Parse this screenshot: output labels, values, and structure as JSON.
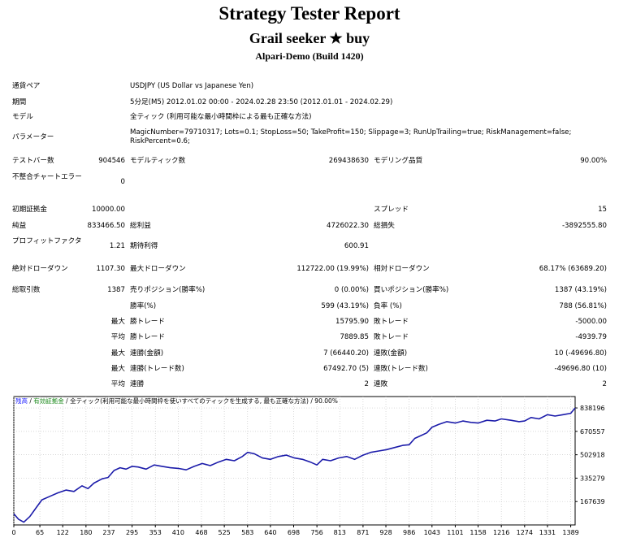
{
  "header": {
    "title": "Strategy Tester Report",
    "ea_name": "Grail seeker ★ buy",
    "server": "Alpari-Demo (Build 1420)"
  },
  "info": {
    "symbol_label": "通貨ペア",
    "symbol_value": "USDJPY (US Dollar vs Japanese Yen)",
    "period_label": "期間",
    "period_value": "5分足(M5) 2012.01.02 00:00 - 2024.02.28 23:50 (2012.01.01 - 2024.02.29)",
    "model_label": "モデル",
    "model_value": "全ティック (利用可能な最小時間枠による最も正確な方法)",
    "params_label": "パラメーター",
    "params_value": "MagicNumber=79710317; Lots=0.1; StopLoss=50; TakeProfit=150; Slippage=3; RunUpTrailing=true; RiskManagement=false; RiskPercent=0.6;"
  },
  "stats": {
    "bars_label": "テストバー数",
    "bars_value": "904546",
    "ticks_label": "モデルティック数",
    "ticks_value": "269438630",
    "quality_label": "モデリング品質",
    "quality_value": "90.00%",
    "mismatch_label": "不整合チャートエラー",
    "mismatch_value": "0",
    "deposit_label": "初期証拠金",
    "deposit_value": "10000.00",
    "spread_label": "スプレッド",
    "spread_value": "15",
    "net_label": "純益",
    "net_value": "833466.50",
    "gross_profit_label": "総利益",
    "gross_profit_value": "4726022.30",
    "gross_loss_label": "総損失",
    "gross_loss_value": "-3892555.80",
    "pf_label": "プロフィットファクタ",
    "pf_value": "1.21",
    "expected_label": "期待利得",
    "expected_value": "600.91",
    "abs_dd_label": "絶対ドローダウン",
    "abs_dd_value": "1107.30",
    "max_dd_label": "最大ドローダウン",
    "max_dd_value": "112722.00 (19.99%)",
    "rel_dd_label": "相対ドローダウン",
    "rel_dd_value": "68.17% (63689.20)",
    "trades_label": "総取引数",
    "trades_value": "1387",
    "short_label": "売りポジション(勝率%)",
    "short_value": "0 (0.00%)",
    "long_label": "買いポジション(勝率%)",
    "long_value": "1387 (43.19%)",
    "win_rate_label": "勝率(%)",
    "win_rate_value": "599 (43.19%)",
    "loss_rate_label": "負率 (%)",
    "loss_rate_value": "788 (56.81%)",
    "max_label": "最大",
    "avg_label": "平均",
    "largest_win_label": "勝トレード",
    "largest_win_value": "15795.90",
    "largest_loss_label": "敗トレード",
    "largest_loss_value": "-5000.00",
    "avg_win_label": "勝トレード",
    "avg_win_value": "7889.85",
    "avg_loss_label": "敗トレード",
    "avg_loss_value": "-4939.79",
    "max_consec_win_label": "連勝(金額)",
    "max_consec_win_value": "7 (66440.20)",
    "max_consec_loss_label": "連敗(金額)",
    "max_consec_loss_value": "10 (-49696.80)",
    "max_consec_profit_label": "連勝(トレード数)",
    "max_consec_profit_value": "67492.70 (5)",
    "max_consec_lossamt_label": "連敗(トレード数)",
    "max_consec_lossamt_value": "-49696.80 (10)",
    "avg_consec_win_label": "連勝",
    "avg_consec_win_value": "2",
    "avg_consec_loss_label": "連敗",
    "avg_consec_loss_value": "2"
  },
  "legend": {
    "balance": "残高",
    "sep1": " / ",
    "margin": "有効証拠金",
    "sep2": " / ",
    "model": "全ティック(利用可能な最小時間枠を使いすべてのティックを生成する, 最も正確な方法)",
    "quality": " / 90.00%"
  },
  "colors": {
    "line": "#1c1caa",
    "grid": "#c8c8c8",
    "border": "#000000"
  },
  "chart_data": {
    "type": "line",
    "title": "",
    "xlabel": "",
    "ylabel": "",
    "x_ticks": [
      0,
      65,
      122,
      180,
      237,
      295,
      353,
      410,
      468,
      525,
      583,
      640,
      698,
      756,
      813,
      871,
      928,
      986,
      1043,
      1101,
      1158,
      1216,
      1274,
      1331,
      1389
    ],
    "y_ticks": [
      167639,
      335279,
      502918,
      670557,
      838196
    ],
    "xlim": [
      0,
      1400
    ],
    "ylim": [
      0,
      920000
    ],
    "series": [
      {
        "x": [
          0,
          12,
          25,
          40,
          55,
          70,
          90,
          110,
          130,
          150,
          170,
          185,
          200,
          220,
          235,
          250,
          265,
          280,
          295,
          310,
          330,
          350,
          370,
          390,
          410,
          430,
          450,
          470,
          490,
          510,
          530,
          550,
          570,
          583,
          600,
          620,
          640,
          660,
          680,
          700,
          720,
          740,
          756,
          770,
          790,
          810,
          830,
          850,
          871,
          890,
          910,
          930,
          950,
          970,
          986,
          1000,
          1015,
          1030,
          1043,
          1060,
          1080,
          1101,
          1120,
          1140,
          1158,
          1180,
          1200,
          1216,
          1240,
          1260,
          1274,
          1290,
          1310,
          1331,
          1350,
          1370,
          1389,
          1400
        ],
        "y": [
          80000,
          40000,
          20000,
          60000,
          120000,
          180000,
          205000,
          230000,
          250000,
          240000,
          280000,
          260000,
          300000,
          330000,
          340000,
          390000,
          410000,
          400000,
          420000,
          415000,
          400000,
          430000,
          420000,
          410000,
          405000,
          395000,
          420000,
          440000,
          425000,
          450000,
          470000,
          460000,
          490000,
          520000,
          510000,
          480000,
          470000,
          490000,
          500000,
          480000,
          470000,
          450000,
          430000,
          470000,
          460000,
          480000,
          490000,
          470000,
          500000,
          520000,
          530000,
          540000,
          555000,
          570000,
          575000,
          620000,
          640000,
          660000,
          700000,
          720000,
          740000,
          730000,
          745000,
          735000,
          730000,
          750000,
          745000,
          760000,
          750000,
          740000,
          745000,
          770000,
          760000,
          790000,
          780000,
          790000,
          800000,
          838196
        ]
      }
    ]
  }
}
